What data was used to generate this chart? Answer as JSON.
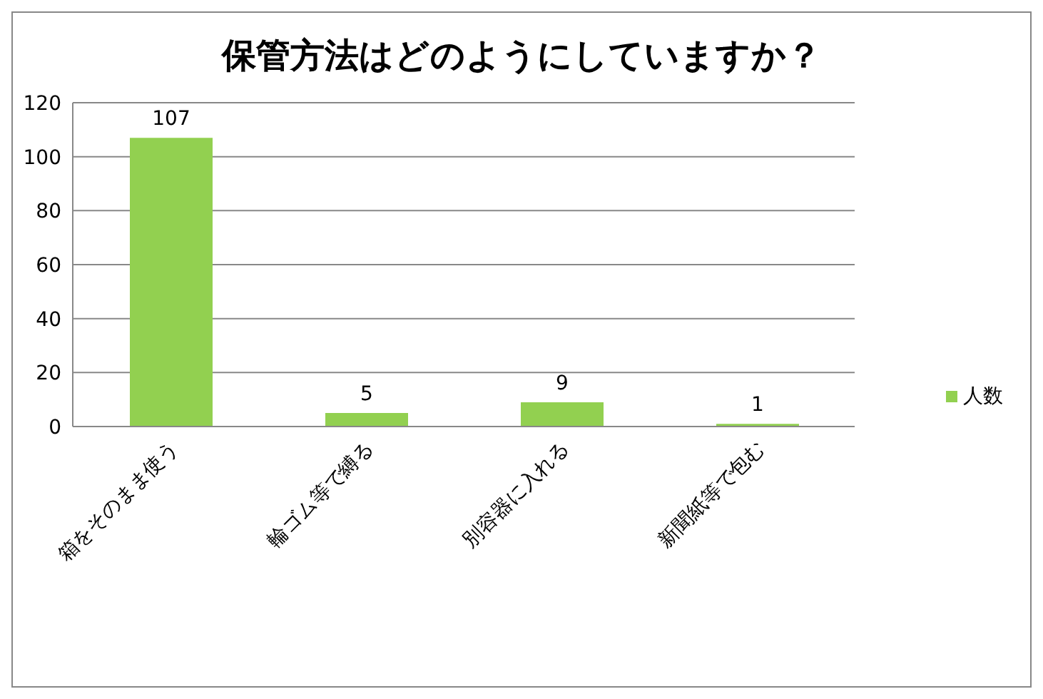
{
  "chart_data": {
    "type": "bar",
    "title": "保管方法はどのようにしていますか？",
    "categories": [
      "箱をそのまま使う",
      "輪ゴム等で縛る",
      "別容器に入れる",
      "新聞紙等で包む"
    ],
    "series": [
      {
        "name": "人数",
        "color": "#92d050",
        "values": [
          107,
          5,
          9,
          1
        ]
      }
    ],
    "ylim": [
      0,
      120
    ],
    "yticks": [
      0,
      20,
      40,
      60,
      80,
      100,
      120
    ],
    "grid": "y",
    "legend": "right",
    "data_labels": true
  }
}
